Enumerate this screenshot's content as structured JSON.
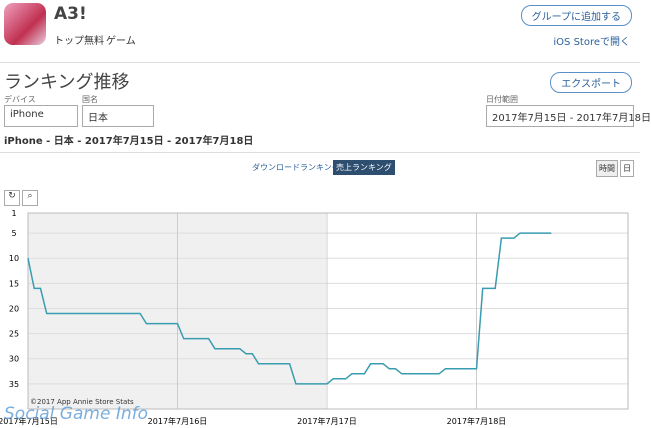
{
  "header": {
    "app_name": "A3!",
    "tags": [
      "トップ無料",
      "ゲーム"
    ],
    "add_group": "グループに追加する",
    "open_store": "iOS Storeで開く"
  },
  "section": {
    "title": "ランキング推移",
    "export": "エクスポート",
    "filters": [
      {
        "label": "デバイス",
        "value": "iPhone"
      },
      {
        "label": "国名",
        "value": "日本"
      },
      {
        "label": "日付範囲",
        "value": "2017年7月15日 - 2017年7月18日"
      }
    ],
    "summary": "iPhone - 日本 - 2017年7月15日 - 2017年7月18日",
    "tabs": [
      "ダウンロードランキング",
      "売上ランキング"
    ],
    "granularity": [
      "時間",
      "日"
    ]
  },
  "chart_data": {
    "type": "line",
    "color": "#3a9cb0",
    "grid": true,
    "categories": [
      "2017年7月15日",
      null,
      null,
      null,
      null,
      null,
      null,
      null,
      null,
      null,
      null,
      null,
      null,
      null,
      null,
      null,
      null,
      null,
      null,
      null,
      null,
      null,
      null,
      null,
      "2017年7月16日",
      null,
      null,
      null,
      null,
      null,
      null,
      null,
      null,
      null,
      null,
      null,
      null,
      null,
      null,
      null,
      null,
      null,
      null,
      null,
      null,
      null,
      null,
      null,
      "2017年7月17日",
      null,
      null,
      null,
      null,
      null,
      null,
      null,
      null,
      null,
      null,
      null,
      null,
      null,
      null,
      null,
      null,
      null,
      null,
      null,
      null,
      null,
      null,
      null,
      "2017年7月18日",
      null,
      null,
      null,
      null,
      null,
      null,
      null,
      null,
      null,
      null,
      null,
      null,
      null,
      null,
      null,
      null,
      null,
      null,
      null,
      null,
      null,
      null,
      null
    ],
    "values": [
      10,
      16,
      16,
      21,
      21,
      21,
      21,
      21,
      21,
      21,
      21,
      21,
      21,
      21,
      21,
      21,
      21,
      21,
      21,
      23,
      23,
      23,
      23,
      23,
      23,
      26,
      26,
      26,
      26,
      26,
      28,
      28,
      28,
      28,
      28,
      29,
      29,
      31,
      31,
      31,
      31,
      31,
      31,
      35,
      35,
      35,
      35,
      35,
      35,
      34,
      34,
      34,
      33,
      33,
      33,
      31,
      31,
      31,
      32,
      32,
      33,
      33,
      33,
      33,
      33,
      33,
      33,
      32,
      32,
      32,
      32,
      32,
      32,
      16,
      16,
      16,
      6,
      6,
      6,
      5,
      5,
      5,
      5,
      5,
      5,
      null,
      null,
      null,
      null,
      null,
      null,
      null,
      null,
      null,
      null,
      null
    ],
    "ylim": [
      40,
      1
    ],
    "yticks": [
      1,
      5,
      10,
      15,
      20,
      25,
      30,
      35
    ],
    "annotations": [
      "©2017 App Annie Store Stats"
    ]
  },
  "watermark": "Social Game Info"
}
